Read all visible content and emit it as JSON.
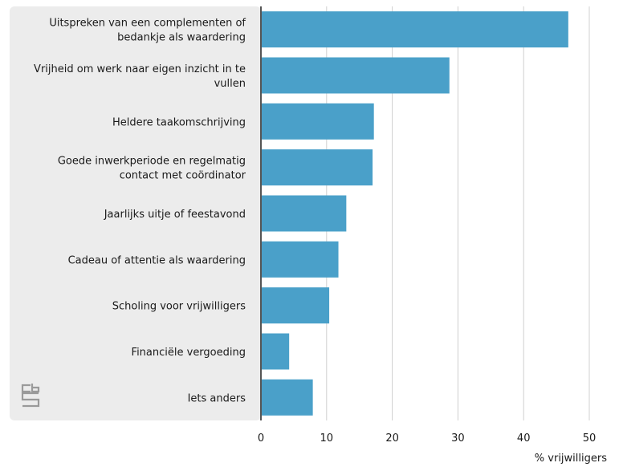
{
  "chart_data": {
    "type": "bar",
    "orientation": "horizontal",
    "categories": [
      [
        "Uitspreken van een complementen of",
        "bedankje als waardering"
      ],
      [
        "Vrijheid om werk naar eigen inzicht in te",
        "vullen"
      ],
      [
        "Heldere taakomschrijving"
      ],
      [
        "Goede inwerkperiode en regelmatig",
        "contact met coördinator"
      ],
      [
        "Jaarlijks uitje of feestavond"
      ],
      [
        "Cadeau of attentie als waardering"
      ],
      [
        "Scholing voor vrijwilligers"
      ],
      [
        "Financiële vergoeding"
      ],
      [
        "Iets anders"
      ]
    ],
    "values": [
      46.8,
      28.7,
      17.2,
      17.0,
      13.0,
      11.8,
      10.4,
      4.3,
      7.9
    ],
    "xlabel": "% vrijwilligers",
    "ylabel": "",
    "xlim": [
      0,
      50
    ],
    "xticks": [
      "0",
      "10",
      "20",
      "30",
      "40",
      "50"
    ],
    "grid": true,
    "colors": {
      "bar": "#4aa0c9",
      "grid": "#d0d0d0",
      "axis": "#555555",
      "label_panel": "#ececec",
      "logo": "#9a9a9a"
    },
    "logo_icon": "cbs-logo-icon"
  }
}
